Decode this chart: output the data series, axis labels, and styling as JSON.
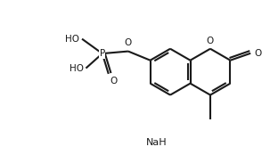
{
  "background_color": "#ffffff",
  "line_color": "#1a1a1a",
  "line_width": 1.5,
  "text_color": "#1a1a1a",
  "NaH_label": "NaH",
  "fig_width": 3.03,
  "fig_height": 1.74,
  "dpi": 100,
  "xlim": [
    0,
    9.5
  ],
  "ylim": [
    0,
    5.5
  ]
}
